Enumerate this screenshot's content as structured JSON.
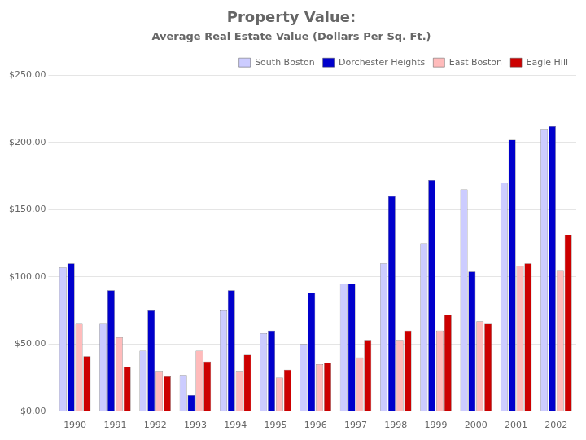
{
  "chart_data": {
    "type": "bar",
    "title": "Property Value:",
    "subtitle": "Average Real Estate Value (Dollars Per Sq. Ft.)",
    "categories": [
      "1990",
      "1991",
      "1992",
      "1993",
      "1994",
      "1995",
      "1996",
      "1997",
      "1998",
      "1999",
      "2000",
      "2001",
      "2002"
    ],
    "series": [
      {
        "name": "South Boston",
        "color": "#CCCCFF",
        "values": [
          107,
          65,
          45,
          27,
          75,
          58,
          50,
          95,
          110,
          125,
          165,
          170,
          210
        ]
      },
      {
        "name": "Dorchester Heights",
        "color": "#0000CC",
        "values": [
          110,
          90,
          75,
          12,
          90,
          60,
          88,
          95,
          160,
          172,
          104,
          202,
          212
        ]
      },
      {
        "name": "East Boston",
        "color": "#FFBBBB",
        "values": [
          65,
          55,
          30,
          45,
          30,
          25,
          35,
          40,
          53,
          60,
          67,
          108,
          105
        ]
      },
      {
        "name": "Eagle Hill",
        "color": "#CC0000",
        "values": [
          41,
          33,
          26,
          37,
          42,
          31,
          36,
          53,
          60,
          72,
          65,
          110,
          131
        ]
      }
    ],
    "ylim": [
      0,
      250
    ],
    "yticks": [
      {
        "value": 0,
        "label": "$0.00"
      },
      {
        "value": 50,
        "label": "$50.00"
      },
      {
        "value": 100,
        "label": "$100.00"
      },
      {
        "value": 150,
        "label": "$150.00"
      },
      {
        "value": 200,
        "label": "$200.00"
      },
      {
        "value": 250,
        "label": "$250.00"
      }
    ],
    "grid": true,
    "legend": "upper right"
  }
}
